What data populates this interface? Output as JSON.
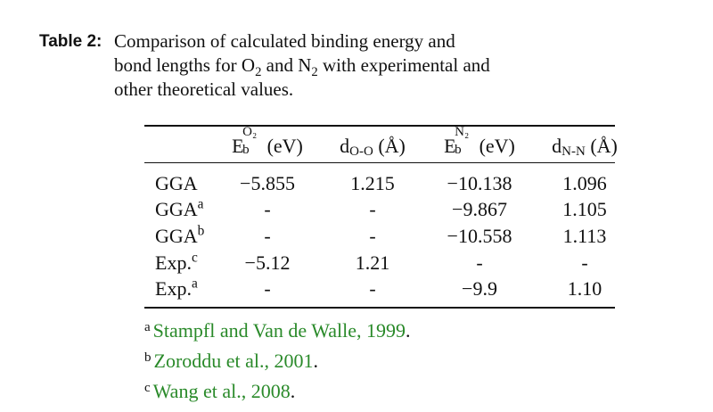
{
  "caption": {
    "label": "Table 2:",
    "lines": [
      [
        "Comparison of calculated binding energy and"
      ],
      [
        "bond lengths for O",
        "2",
        " and N",
        "2",
        " with experimental and"
      ],
      [
        "other theoretical values."
      ]
    ]
  },
  "table": {
    "headers": {
      "eb_o2": {
        "base": "E",
        "sup": "O₂",
        "sub": "b",
        "unit": "(eV)"
      },
      "d_oo": {
        "base": "d",
        "sub": "O-O",
        "unit": "(Å)"
      },
      "eb_n2": {
        "base": "E",
        "sup": "N₂",
        "sub": "b",
        "unit": "(eV)"
      },
      "d_nn": {
        "base": "d",
        "sub": "N-N",
        "unit": "(Å)"
      }
    },
    "rows": [
      {
        "label": "GGA",
        "mark": "",
        "eb_o2": "−5.855",
        "d_oo": "1.215",
        "eb_n2": "−10.138",
        "d_nn": "1.096"
      },
      {
        "label": "GGA",
        "mark": "a",
        "eb_o2": "-",
        "d_oo": "-",
        "eb_n2": "−9.867",
        "d_nn": "1.105"
      },
      {
        "label": "GGA",
        "mark": "b",
        "eb_o2": "-",
        "d_oo": "-",
        "eb_n2": "−10.558",
        "d_nn": "1.113"
      },
      {
        "label": "Exp.",
        "mark": "c",
        "eb_o2": "−5.12",
        "d_oo": "1.21",
        "eb_n2": "-",
        "d_nn": "-"
      },
      {
        "label": "Exp.",
        "mark": "a",
        "eb_o2": "-",
        "d_oo": "-",
        "eb_n2": "−9.9",
        "d_nn": "1.10"
      }
    ]
  },
  "references": [
    {
      "mark": "a",
      "text": "Stampfl and Van de Walle,",
      "year": "1999",
      "end": "."
    },
    {
      "mark": "b",
      "text": "Zoroddu et al.,",
      "year": "2001",
      "end": "."
    },
    {
      "mark": "c",
      "text": "Wang et al.,",
      "year": "2008",
      "end": "."
    }
  ],
  "colors": {
    "link": "#2a8a2a",
    "text": "#111111"
  }
}
